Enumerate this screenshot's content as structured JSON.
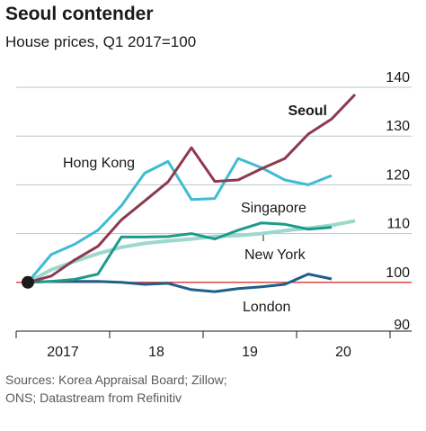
{
  "chart_data": {
    "type": "line",
    "title": "Seoul contender",
    "subtitle": "House prices, Q1 2017=100",
    "source": [
      "Sources: Korea Appraisal Board; Zillow;",
      "ONS; Datastream from Refinitiv"
    ],
    "x": [
      2017.125,
      2017.375,
      2017.625,
      2017.875,
      2018.125,
      2018.375,
      2018.625,
      2018.875,
      2019.125,
      2019.375,
      2019.625,
      2019.875,
      2020.125,
      2020.375,
      2020.625
    ],
    "xlim": [
      2017,
      2021.25
    ],
    "year_boundaries": [
      2017,
      2018,
      2019,
      2020,
      2021
    ],
    "xticks": [
      {
        "value": 2017.5,
        "label": "2017"
      },
      {
        "value": 2018.5,
        "label": "18"
      },
      {
        "value": 2019.5,
        "label": "19"
      },
      {
        "value": 2020.5,
        "label": "20"
      }
    ],
    "ylim": [
      90,
      140
    ],
    "yticks": [
      90,
      100,
      110,
      120,
      130,
      140
    ],
    "grid": true,
    "reference_line": {
      "value": 100,
      "color": "#e3120b"
    },
    "series": [
      {
        "name": "New York",
        "color": "#9dd8cc",
        "values": [
          100,
          102.6,
          104.3,
          105.9,
          107.2,
          108,
          108.5,
          108.9,
          109.4,
          109.6,
          110,
          110.6,
          111.1,
          111.7,
          112.6
        ]
      },
      {
        "name": "London",
        "color": "#1f5f8b",
        "values": [
          100,
          100.2,
          100.2,
          100.2,
          100,
          99.6,
          99.8,
          98.5,
          98.1,
          98.7,
          99.1,
          99.6,
          101.7,
          100.7,
          null
        ]
      },
      {
        "name": "Singapore",
        "color": "#1d9a8a",
        "values": [
          100,
          100.2,
          100.6,
          101.7,
          109.3,
          109.3,
          109.4,
          110,
          108.9,
          110.7,
          112.2,
          111.9,
          110.9,
          111.3,
          null
        ]
      },
      {
        "name": "Hong Kong",
        "color": "#3ebcd2",
        "values": [
          100,
          105.7,
          107.8,
          110.7,
          115.7,
          122.4,
          124.8,
          117,
          117.2,
          125.4,
          123.5,
          121,
          120,
          121.9,
          null
        ]
      },
      {
        "name": "Seoul",
        "color": "#8c3a4f",
        "values": [
          100,
          101.3,
          104.6,
          107.4,
          112.8,
          116.7,
          120.6,
          127.6,
          120.7,
          121,
          123.3,
          125.4,
          130.4,
          133.5,
          138.5
        ]
      }
    ]
  }
}
